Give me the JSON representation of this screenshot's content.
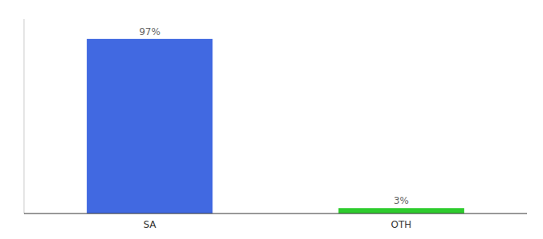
{
  "chart_data": {
    "type": "bar",
    "categories": [
      "SA",
      "OTH"
    ],
    "values": [
      97,
      3
    ],
    "value_labels": [
      "97%",
      "3%"
    ],
    "data_labels": true,
    "colors": [
      "#4169e1",
      "#2ecc2e"
    ],
    "ylim": [
      0,
      108
    ],
    "tick_labels": "x"
  }
}
